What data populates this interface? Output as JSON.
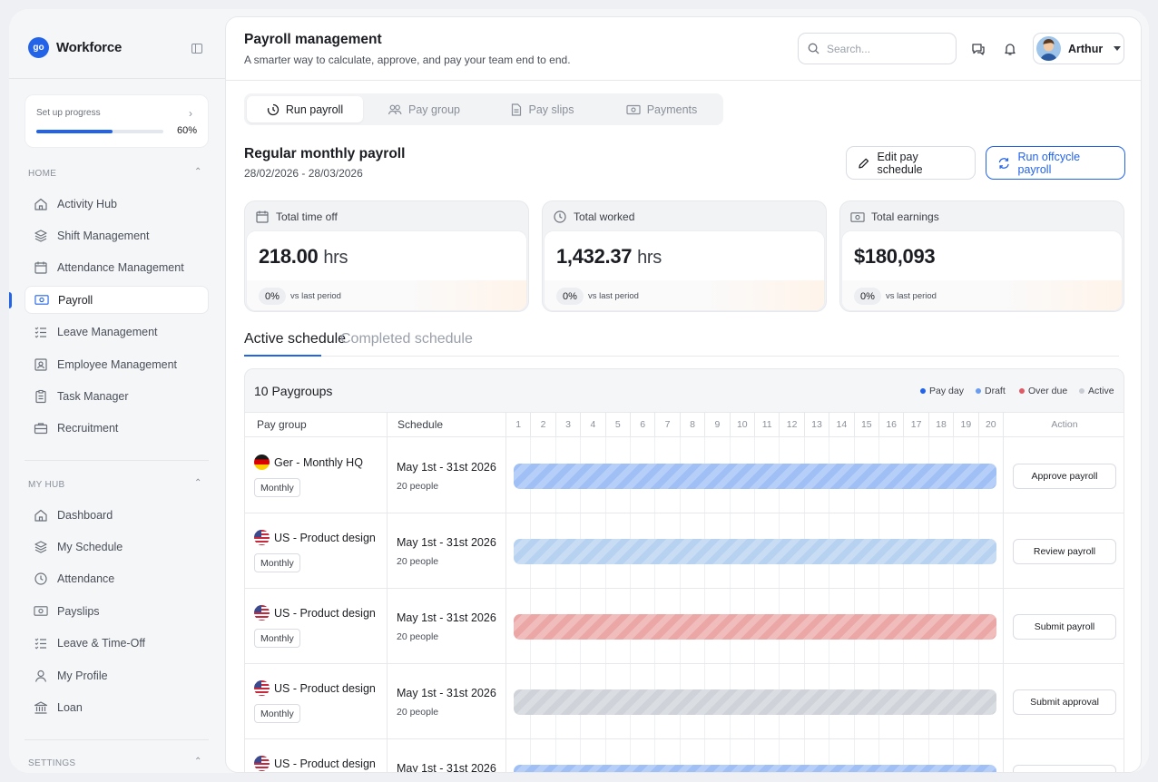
{
  "brand": {
    "logo_text": "go",
    "name": "Workforce"
  },
  "setup": {
    "label": "Set up progress",
    "percent": "60%",
    "progress": 0.6
  },
  "sections": {
    "home": "HOME",
    "my_hub": "MY HUB",
    "settings": "SETTINGS"
  },
  "nav_home": [
    {
      "label": "Activity Hub",
      "icon": "home-icon"
    },
    {
      "label": "Shift Management",
      "icon": "layers-icon"
    },
    {
      "label": "Attendance Management",
      "icon": "calendar-icon"
    },
    {
      "label": "Payroll",
      "icon": "money-icon",
      "active": true
    },
    {
      "label": "Leave Management",
      "icon": "checklist-icon"
    },
    {
      "label": "Employee Management",
      "icon": "id-card-icon"
    },
    {
      "label": "Task Manager",
      "icon": "clipboard-icon"
    },
    {
      "label": "Recruitment",
      "icon": "briefcase-icon"
    }
  ],
  "nav_hub": [
    {
      "label": "Dashboard",
      "icon": "home-icon"
    },
    {
      "label": "My Schedule",
      "icon": "layers-icon"
    },
    {
      "label": "Attendance",
      "icon": "clock-icon"
    },
    {
      "label": "Payslips",
      "icon": "money-icon"
    },
    {
      "label": "Leave & Time-Off",
      "icon": "checklist-icon"
    },
    {
      "label": "My Profile",
      "icon": "user-icon"
    },
    {
      "label": "Loan",
      "icon": "bank-icon"
    }
  ],
  "header": {
    "title": "Payroll management",
    "subtitle": "A smarter way to calculate, approve, and pay your team end to end.",
    "search_placeholder": "Search...",
    "user_name": "Arthur"
  },
  "tabs": [
    "Run payroll",
    "Pay group",
    "Pay slips",
    "Payments"
  ],
  "payroll": {
    "title": "Regular monthly payroll",
    "dates": "28/02/2026 - 28/03/2026",
    "edit_button": "Edit pay schedule",
    "offcycle_button": "Run offcycle payroll"
  },
  "stats": [
    {
      "label": "Total time off",
      "value": "218.00",
      "unit": "hrs",
      "change": "0%",
      "vs": "vs last period",
      "icon": "calendar-icon"
    },
    {
      "label": "Total worked",
      "value": "1,432.37",
      "unit": "hrs",
      "change": "0%",
      "vs": "vs last period",
      "icon": "clock-icon"
    },
    {
      "label": "Total earnings",
      "value": "$180,093",
      "unit": "",
      "change": "0%",
      "vs": "vs last period",
      "icon": "money-icon"
    }
  ],
  "subtabs": {
    "active": "Active schedule",
    "completed": "Completed schedule"
  },
  "grid": {
    "title": "10 Paygroups",
    "legend": [
      {
        "label": "Pay day",
        "color": "#2363e8"
      },
      {
        "label": "Draft",
        "color": "#6a9cf0"
      },
      {
        "label": "Over due",
        "color": "#e05a66"
      },
      {
        "label": "Active",
        "color": "#c9ccd2"
      }
    ],
    "col_paygroup": "Pay group",
    "col_schedule": "Schedule",
    "col_action": "Action",
    "days": [
      "1",
      "2",
      "3",
      "4",
      "5",
      "6",
      "7",
      "8",
      "9",
      "10",
      "11",
      "12",
      "13",
      "14",
      "15",
      "16",
      "17",
      "18",
      "19",
      "20"
    ],
    "rows": [
      {
        "flag": "de",
        "name": "Ger - Monthly HQ",
        "badge": "Monthly",
        "schedule": "May 1st - 31st 2026",
        "people": "20 people",
        "status": "payday",
        "action": "Approve payroll"
      },
      {
        "flag": "us",
        "name": "US - Product design",
        "badge": "Monthly",
        "schedule": "May 1st - 31st 2026",
        "people": "20 people",
        "status": "draft",
        "action": "Review payroll"
      },
      {
        "flag": "us",
        "name": "US - Product design",
        "badge": "Monthly",
        "schedule": "May 1st - 31st 2026",
        "people": "20 people",
        "status": "overdue",
        "action": "Submit payroll"
      },
      {
        "flag": "us",
        "name": "US - Product design",
        "badge": "Monthly",
        "schedule": "May 1st - 31st 2026",
        "people": "20 people",
        "status": "active",
        "action": "Submit approval"
      },
      {
        "flag": "us",
        "name": "US - Product design",
        "badge": "",
        "schedule": "May 1st - 31st 2026",
        "people": "",
        "status": "payday",
        "action": ""
      }
    ]
  }
}
